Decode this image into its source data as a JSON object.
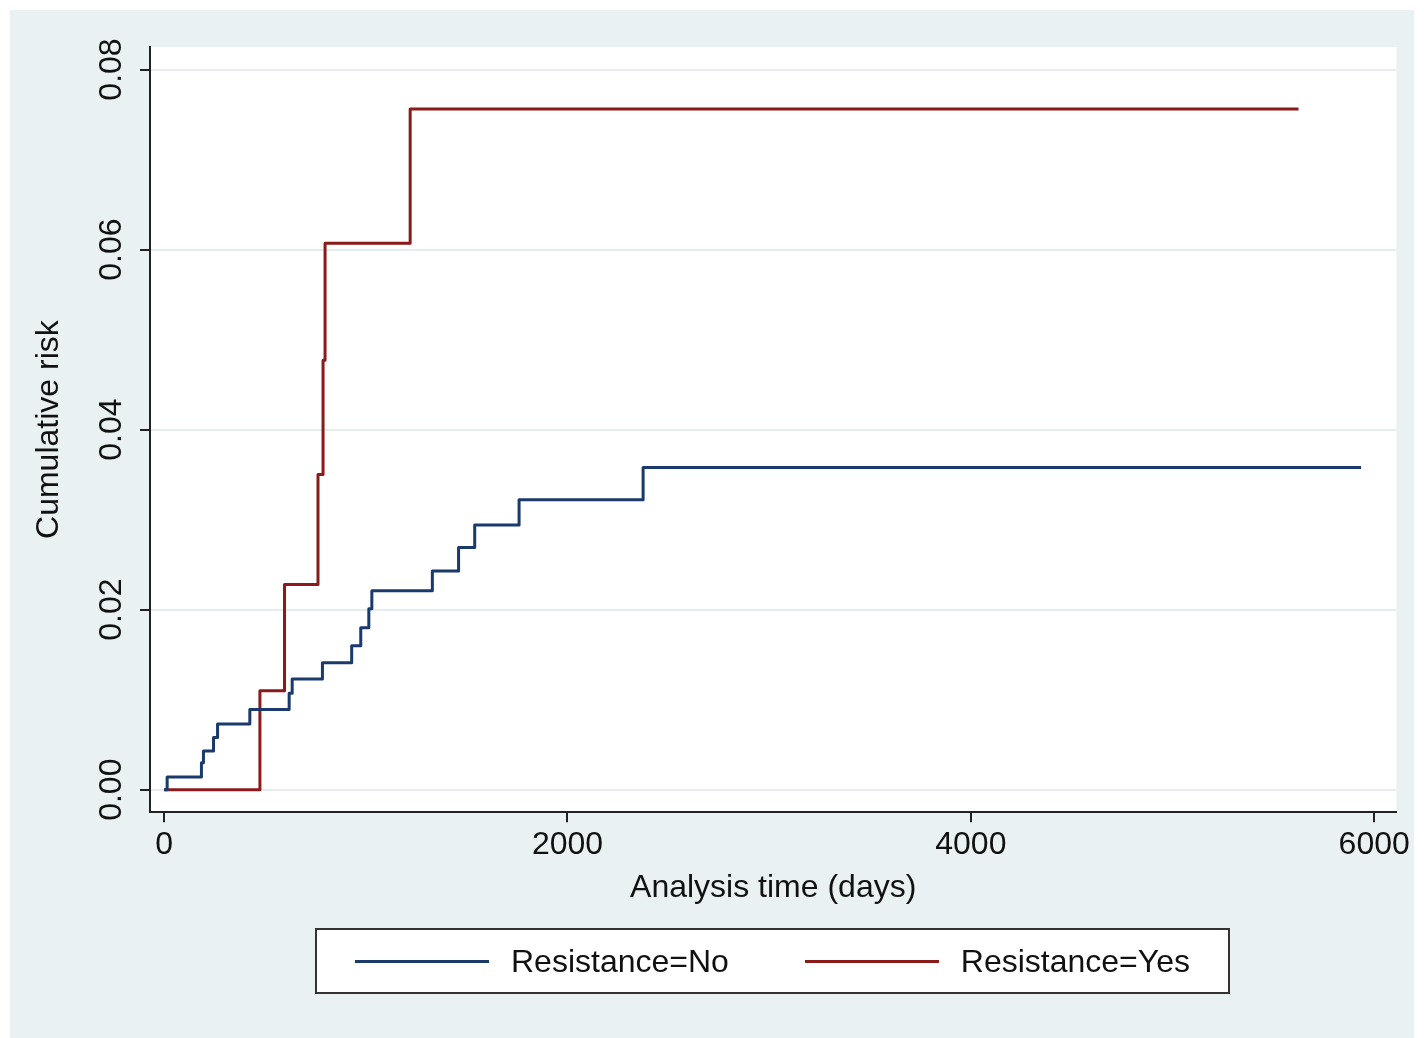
{
  "chart_data": {
    "type": "step",
    "xlabel": "Analysis time (days)",
    "ylabel": "Cumulative risk",
    "xlim": [
      -70,
      6110
    ],
    "xticks": [
      0,
      2000,
      4000,
      6000
    ],
    "ylim": [
      -0.0025,
      0.0825
    ],
    "yticks": [
      {
        "value": 0,
        "label": "0.00"
      },
      {
        "value": 0.02,
        "label": "0.02"
      },
      {
        "value": 0.04,
        "label": "0.04"
      },
      {
        "value": 0.06,
        "label": "0.06"
      },
      {
        "value": 0.08,
        "label": "0.08"
      }
    ],
    "grid": "y",
    "legend": "bottom",
    "marker": "none",
    "line_style": "solid",
    "series": [
      {
        "name": "Resistance=No",
        "color": "#1a3a6b",
        "x": [
          0,
          15,
          185,
          195,
          245,
          265,
          425,
          620,
          635,
          785,
          930,
          975,
          1015,
          1030,
          1330,
          1460,
          1540,
          1760,
          2375,
          5935
        ],
        "values": [
          0,
          0.0014,
          0.003,
          0.0043,
          0.0058,
          0.0073,
          0.0089,
          0.0107,
          0.0123,
          0.0141,
          0.016,
          0.018,
          0.0201,
          0.0221,
          0.0243,
          0.0269,
          0.0294,
          0.0322,
          0.0358,
          0.0358
        ]
      },
      {
        "name": "Resistance=Yes",
        "color": "#8b1a1a",
        "x": [
          0,
          475,
          597,
          763,
          788,
          798,
          1220,
          5625
        ],
        "values": [
          0,
          0.011,
          0.0228,
          0.035,
          0.0477,
          0.0607,
          0.0756,
          0.0756
        ]
      }
    ]
  }
}
